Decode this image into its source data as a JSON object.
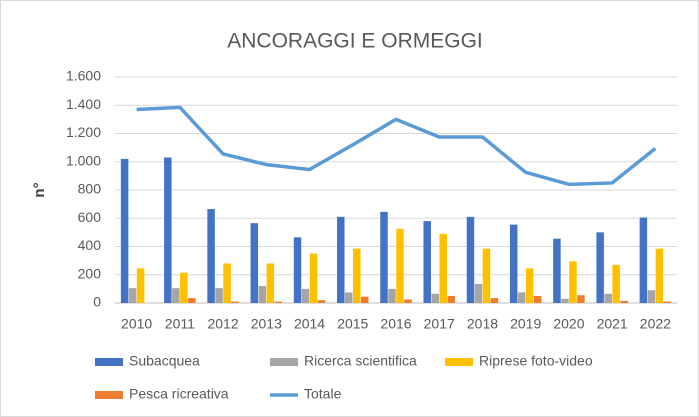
{
  "chart_data": {
    "type": "bar",
    "title": "ANCORAGGI E ORMEGGI",
    "y_label": "n°",
    "categories": [
      "2010",
      "2011",
      "2012",
      "2013",
      "2014",
      "2015",
      "2016",
      "2017",
      "2018",
      "2019",
      "2020",
      "2021",
      "2022"
    ],
    "series": [
      {
        "name": "Subacquea",
        "color": "#4472c4",
        "values": [
          1020,
          1030,
          665,
          565,
          465,
          610,
          645,
          580,
          610,
          555,
          455,
          500,
          605
        ]
      },
      {
        "name": "Ricerca scientifica",
        "color": "#a5a5a5",
        "values": [
          105,
          105,
          105,
          120,
          100,
          75,
          100,
          65,
          135,
          75,
          30,
          65,
          90
        ]
      },
      {
        "name": "Riprese foto-video",
        "color": "#ffc000",
        "values": [
          245,
          215,
          280,
          280,
          350,
          385,
          525,
          490,
          385,
          245,
          295,
          270,
          385
        ]
      },
      {
        "name": "Pesca ricreativa",
        "color": "#ed7d31",
        "values": [
          0,
          35,
          10,
          10,
          20,
          45,
          25,
          50,
          35,
          50,
          55,
          15,
          10
        ]
      },
      {
        "name": "Totale",
        "color": "#5b9bd5",
        "type": "line",
        "values": [
          1370,
          1385,
          1055,
          980,
          945,
          1120,
          1300,
          1175,
          1175,
          925,
          840,
          850,
          1095
        ]
      }
    ],
    "ylim": [
      0,
      1600
    ],
    "yticks": [
      0,
      200,
      400,
      600,
      800,
      {
        "value": 1000,
        "label": "1.000"
      },
      {
        "value": 1200,
        "label": "1.200"
      },
      {
        "value": 1400,
        "label": "1.400"
      },
      {
        "value": 1600,
        "label": "1.600"
      }
    ],
    "grid": true,
    "legend": "bottom"
  }
}
